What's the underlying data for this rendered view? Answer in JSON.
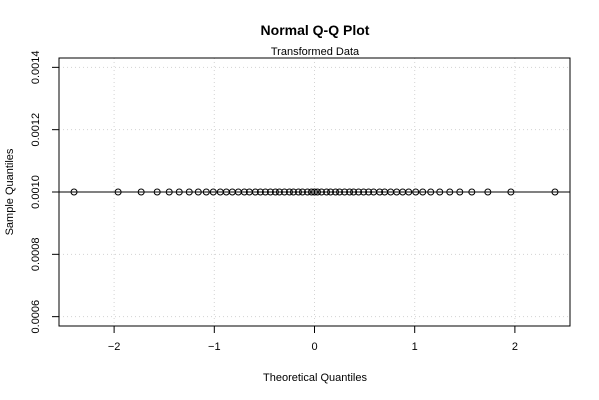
{
  "chart_data": {
    "type": "scatter",
    "title": "Normal Q-Q Plot",
    "subtitle": "Transformed Data",
    "xlabel": "Theoretical Quantiles",
    "ylabel": "Sample Quantiles",
    "xlim": [
      -2.55,
      2.55
    ],
    "ylim": [
      0.00057,
      0.00143
    ],
    "x_ticks": [
      -2,
      -1,
      0,
      1,
      2
    ],
    "x_tick_labels": [
      "−2",
      "−1",
      "0",
      "1",
      "2"
    ],
    "y_ticks": [
      0.0006,
      0.0008,
      0.001,
      0.0012,
      0.0014
    ],
    "y_tick_labels": [
      "0.0006",
      "0.0008",
      "0.0010",
      "0.0012",
      "0.0014"
    ],
    "grid": true,
    "reference_line_y": 0.001,
    "series": [
      {
        "marker": "open-circle",
        "x": [
          -2.4,
          -1.96,
          -1.73,
          -1.57,
          -1.45,
          -1.35,
          -1.25,
          -1.16,
          -1.08,
          -1.01,
          -0.94,
          -0.88,
          -0.82,
          -0.76,
          -0.7,
          -0.65,
          -0.59,
          -0.54,
          -0.49,
          -0.44,
          -0.39,
          -0.35,
          -0.3,
          -0.25,
          -0.21,
          -0.16,
          -0.12,
          -0.07,
          -0.03,
          0.0,
          0.03,
          0.07,
          0.12,
          0.16,
          0.21,
          0.25,
          0.3,
          0.35,
          0.39,
          0.44,
          0.49,
          0.54,
          0.59,
          0.65,
          0.7,
          0.76,
          0.82,
          0.88,
          0.94,
          1.01,
          1.08,
          1.16,
          1.25,
          1.35,
          1.45,
          1.57,
          1.73,
          1.96,
          2.4
        ],
        "y": [
          0.001,
          0.001,
          0.001,
          0.001,
          0.001,
          0.001,
          0.001,
          0.001,
          0.001,
          0.001,
          0.001,
          0.001,
          0.001,
          0.001,
          0.001,
          0.001,
          0.001,
          0.001,
          0.001,
          0.001,
          0.001,
          0.001,
          0.001,
          0.001,
          0.001,
          0.001,
          0.001,
          0.001,
          0.001,
          0.001,
          0.001,
          0.001,
          0.001,
          0.001,
          0.001,
          0.001,
          0.001,
          0.001,
          0.001,
          0.001,
          0.001,
          0.001,
          0.001,
          0.001,
          0.001,
          0.001,
          0.001,
          0.001,
          0.001,
          0.001,
          0.001,
          0.001,
          0.001,
          0.001,
          0.001,
          0.001,
          0.001,
          0.001,
          0.001
        ]
      }
    ]
  }
}
